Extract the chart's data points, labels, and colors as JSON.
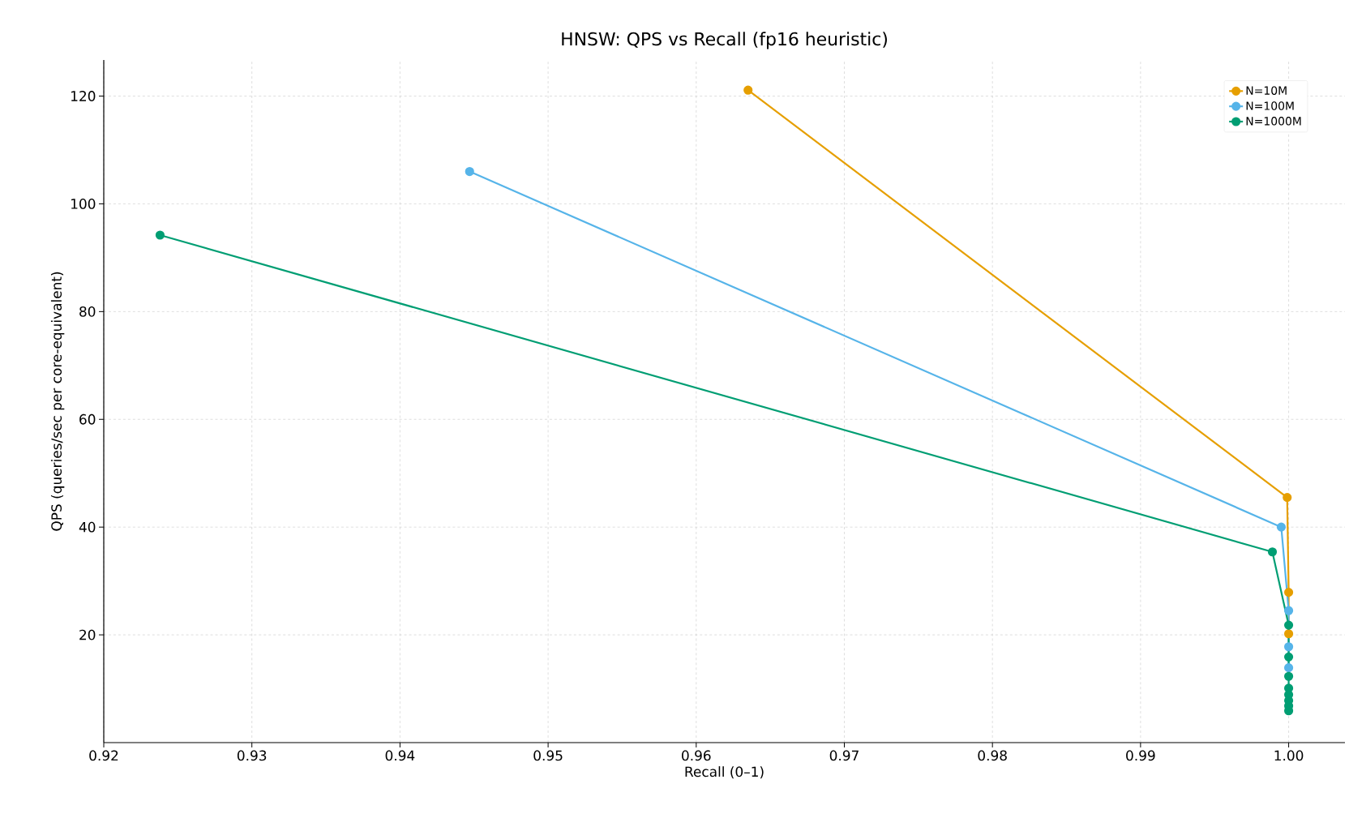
{
  "chart_data": {
    "type": "line",
    "title": "HNSW: QPS vs Recall (fp16 heuristic)",
    "xlabel": "Recall (0–1)",
    "ylabel": "QPS (queries/sec per core-equivalent)",
    "series": [
      {
        "name": "N=10M",
        "color": "#e69f00",
        "x": [
          0.9635,
          0.9999,
          1.0,
          1.0
        ],
        "values": [
          121.1,
          45.5,
          27.9,
          20.2
        ]
      },
      {
        "name": "N=100M",
        "color": "#56b4e9",
        "x": [
          0.9447,
          0.9995,
          1.0,
          1.0,
          1.0
        ],
        "values": [
          106.0,
          40.0,
          24.5,
          17.8,
          13.9
        ]
      },
      {
        "name": "N=1000M",
        "color": "#009e73",
        "x": [
          0.9238,
          0.9989,
          1.0,
          1.0,
          1.0,
          1.0,
          1.0,
          1.0,
          1.0,
          1.0
        ],
        "values": [
          94.2,
          35.4,
          21.8,
          15.9,
          12.3,
          10.1,
          8.9,
          7.8,
          6.8,
          5.9
        ]
      }
    ],
    "xlim": [
      0.92,
      1.0038
    ],
    "ylim": [
      0,
      126.7
    ],
    "xticks": [
      0.92,
      0.93,
      0.94,
      0.95,
      0.96,
      0.97,
      0.98,
      0.99,
      {
        "value": 1.0,
        "label": "1.00"
      }
    ],
    "yticks": [
      20,
      40,
      60,
      80,
      100,
      120
    ],
    "grid": true,
    "legend": "top right",
    "marker": "circle",
    "line_style": "solid"
  }
}
